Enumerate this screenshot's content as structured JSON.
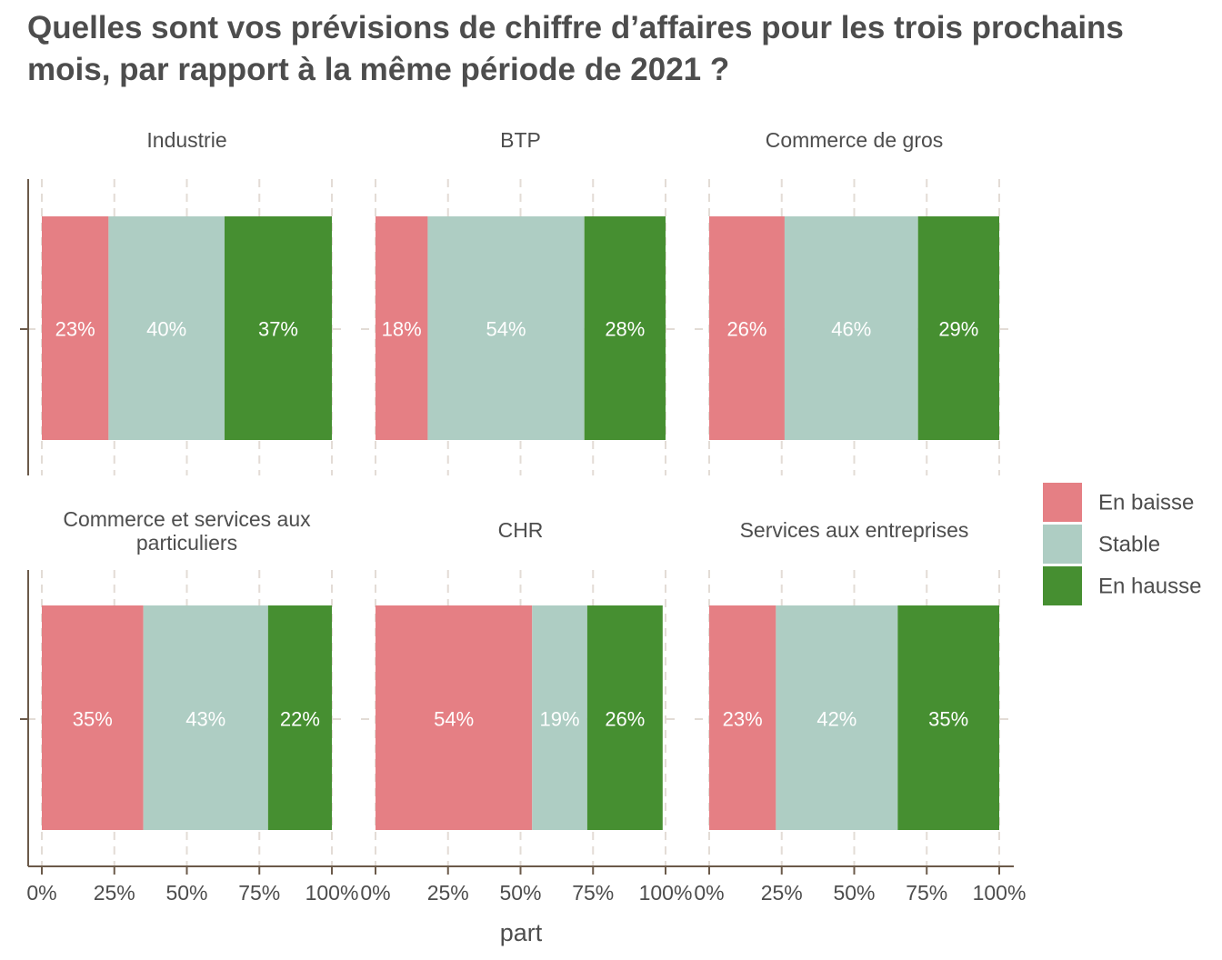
{
  "chart_data": {
    "type": "bar",
    "orientation": "horizontal",
    "stacked": true,
    "title": "Quelles sont vos prévisions de chiffre d’affaires pour les trois prochains mois, par rapport à la même période de 2021 ?",
    "xlabel": "part",
    "ylabel": "",
    "xlim": [
      0,
      100
    ],
    "x_ticks": [
      "0%",
      "25%",
      "50%",
      "75%",
      "100%"
    ],
    "grid": true,
    "legend_position": "right",
    "legend": [
      {
        "name": "En baisse",
        "color": "#e57f84"
      },
      {
        "name": "Stable",
        "color": "#aecdc3"
      },
      {
        "name": "En hausse",
        "color": "#468f31"
      }
    ],
    "facets": [
      {
        "title": "Industrie",
        "values": [
          23,
          40,
          37
        ],
        "labels": [
          "23%",
          "40%",
          "37%"
        ]
      },
      {
        "title": "BTP",
        "values": [
          18,
          54,
          28
        ],
        "labels": [
          "18%",
          "54%",
          "28%"
        ]
      },
      {
        "title": "Commerce de gros",
        "values": [
          26,
          46,
          29
        ],
        "labels": [
          "26%",
          "46%",
          "29%"
        ]
      },
      {
        "title": "Commerce et services aux particuliers",
        "title_lines": [
          "Commerce et services aux",
          "particuliers"
        ],
        "values": [
          35,
          43,
          22
        ],
        "labels": [
          "35%",
          "43%",
          "22%"
        ]
      },
      {
        "title": "CHR",
        "values": [
          54,
          19,
          26
        ],
        "labels": [
          "54%",
          "19%",
          "26%"
        ]
      },
      {
        "title": "Services aux entreprises",
        "values": [
          23,
          42,
          35
        ],
        "labels": [
          "23%",
          "42%",
          "35%"
        ]
      }
    ]
  }
}
